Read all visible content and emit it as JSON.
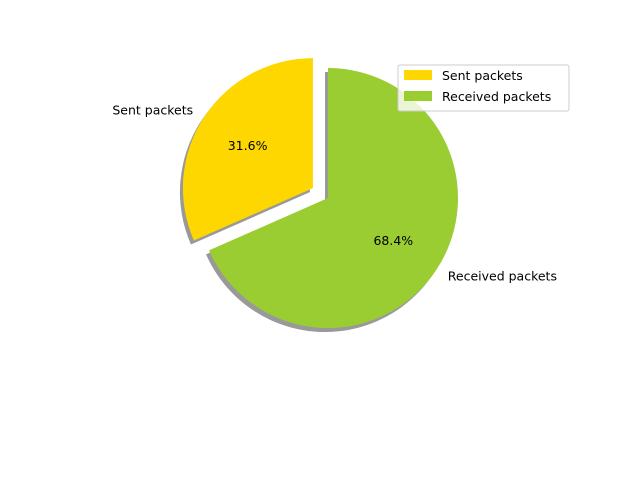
{
  "chart_data": {
    "type": "pie",
    "title": "",
    "slices": [
      {
        "label": "Sent packets",
        "value": 31.6,
        "pct_label": "31.6%",
        "color": "#ffd700",
        "explode": true
      },
      {
        "label": "Received packets",
        "value": 68.4,
        "pct_label": "68.4%",
        "color": "#9acd32",
        "explode": false
      }
    ],
    "shadow": true,
    "legend": {
      "position": "top-right",
      "entries": [
        "Sent packets",
        "Received packets"
      ]
    }
  }
}
